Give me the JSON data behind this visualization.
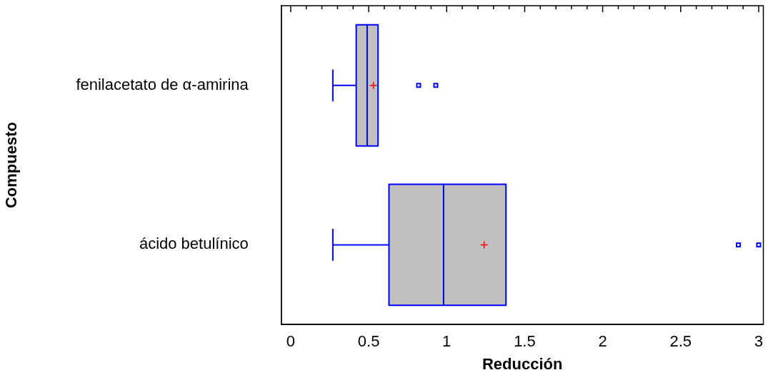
{
  "chart_data": {
    "type": "box",
    "orientation": "horizontal",
    "xlabel": "Reducción",
    "ylabel": "Compuesto",
    "categories": [
      "fenilacetato de α-amirina",
      "ácido betulínico"
    ],
    "xlim": [
      -0.06,
      3.03
    ],
    "xticks": [
      0,
      {
        "value": 0.1,
        "label": null
      },
      {
        "value": 0.2,
        "label": null
      },
      {
        "value": 0.3,
        "label": null
      },
      {
        "value": 0.4,
        "label": null
      },
      0.5,
      {
        "value": 0.6,
        "label": null
      },
      {
        "value": 0.7,
        "label": null
      },
      {
        "value": 0.8,
        "label": null
      },
      {
        "value": 0.9,
        "label": null
      },
      1,
      {
        "value": 1.1,
        "label": null
      },
      {
        "value": 1.2,
        "label": null
      },
      {
        "value": 1.3,
        "label": null
      },
      {
        "value": 1.4,
        "label": null
      },
      1.5,
      {
        "value": 1.6,
        "label": null
      },
      {
        "value": 1.7,
        "label": null
      },
      {
        "value": 1.8,
        "label": null
      },
      {
        "value": 1.9,
        "label": null
      },
      2,
      {
        "value": 2.1,
        "label": null
      },
      {
        "value": 2.2,
        "label": null
      },
      {
        "value": 2.3,
        "label": null
      },
      {
        "value": 2.4,
        "label": null
      },
      2.5,
      {
        "value": 2.6,
        "label": null
      },
      {
        "value": 2.7,
        "label": null
      },
      {
        "value": 2.8,
        "label": null
      },
      {
        "value": 2.9,
        "label": null
      },
      3
    ],
    "series": [
      {
        "color": "#0000ff",
        "boxes": [
          {
            "low": 0.27,
            "q1": 0.42,
            "median": 0.49,
            "q3": 0.56,
            "high": 0.56,
            "mean": 0.53,
            "outliers": [
              0.82,
              0.93
            ]
          },
          {
            "low": 0.27,
            "q1": 0.63,
            "median": 0.98,
            "q3": 1.38,
            "high": 1.38,
            "mean": 1.24,
            "outliers": [
              2.87,
              3.0
            ]
          }
        ]
      }
    ]
  }
}
